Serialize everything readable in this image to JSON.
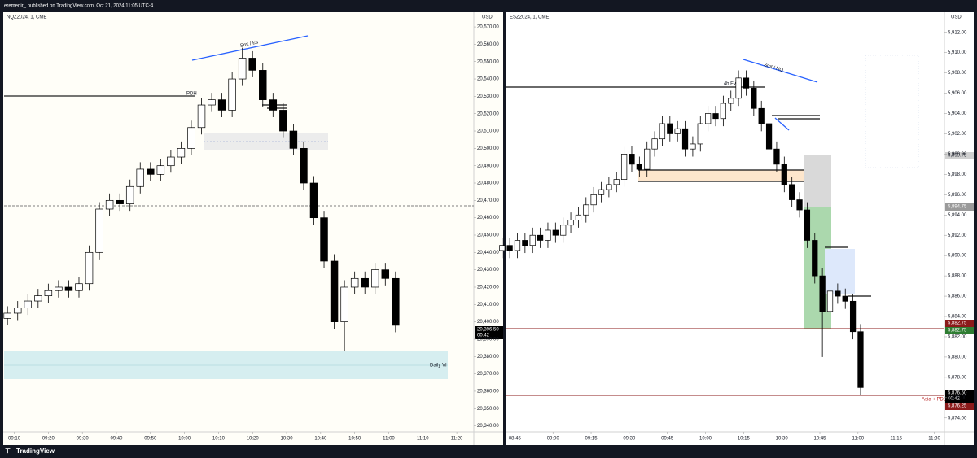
{
  "header": "eremenir_ published on TradingView.com, Oct 21, 2024 11:05 UTC-4",
  "footer": "TradingView",
  "chart_data": [
    {
      "type": "candlestick",
      "symbol": "NQZ2024, 1, CME",
      "currency": "USD",
      "up_color": "#ffffff",
      "down_color": "#000000",
      "x": [
        548,
        551,
        554,
        557,
        560,
        563,
        566,
        569,
        572,
        575,
        578,
        581,
        584,
        587,
        590,
        593,
        596,
        599,
        602,
        605,
        608,
        611,
        614,
        617,
        620,
        623,
        626,
        629,
        632,
        635,
        638,
        641,
        644,
        647,
        650,
        653,
        656,
        659,
        662
      ],
      "open": [
        20402,
        20405,
        20408,
        20412,
        20415,
        20418,
        20420,
        20418,
        20422,
        20440,
        20465,
        20470,
        20468,
        20478,
        20488,
        20485,
        20490,
        20495,
        20500,
        20512,
        20525,
        20528,
        20522,
        20540,
        20552,
        20545,
        20528,
        20522,
        20510,
        20500,
        20480,
        20460,
        20435,
        20400,
        20420,
        20425,
        20420,
        20430,
        20425
      ],
      "high": [
        20409,
        20412,
        20416,
        20419,
        20422,
        20424,
        20424,
        20426,
        20444,
        20469,
        20474,
        20474,
        20482,
        20492,
        20492,
        20494,
        20499,
        20504,
        20516,
        20529,
        20532,
        20532,
        20544,
        20558,
        20556,
        20549,
        20532,
        20526,
        20514,
        20504,
        20484,
        20464,
        20439,
        20424,
        20429,
        20429,
        20434,
        20434,
        20429
      ],
      "low": [
        20398,
        20401,
        20404,
        20408,
        20411,
        20414,
        20414,
        20414,
        20418,
        20436,
        20461,
        20464,
        20464,
        20474,
        20481,
        20481,
        20486,
        20491,
        20496,
        20508,
        20521,
        20518,
        20518,
        20536,
        20541,
        20524,
        20518,
        20506,
        20496,
        20476,
        20456,
        20431,
        20396,
        20383,
        20416,
        20416,
        20416,
        20421,
        20394
      ],
      "close": [
        20405,
        20408,
        20412,
        20415,
        20418,
        20420,
        20418,
        20422,
        20440,
        20465,
        20470,
        20468,
        20478,
        20488,
        20485,
        20490,
        20495,
        20500,
        20512,
        20525,
        20528,
        20522,
        20540,
        20552,
        20545,
        20528,
        20522,
        20510,
        20500,
        20480,
        20460,
        20435,
        20400,
        20420,
        20425,
        20420,
        20430,
        20425,
        20398
      ],
      "xlim": [
        547,
        685
      ],
      "xticks": [
        {
          "value": 550,
          "label": "09:10"
        },
        {
          "value": 560,
          "label": "09:20"
        },
        {
          "value": 570,
          "label": "09:30"
        },
        {
          "value": 580,
          "label": "09:40"
        },
        {
          "value": 590,
          "label": "09:50"
        },
        {
          "value": 600,
          "label": "10:00"
        },
        {
          "value": 610,
          "label": "10:10"
        },
        {
          "value": 620,
          "label": "10:20"
        },
        {
          "value": 630,
          "label": "10:30"
        },
        {
          "value": 640,
          "label": "10:40"
        },
        {
          "value": 650,
          "label": "10:50"
        },
        {
          "value": 660,
          "label": "11:00"
        },
        {
          "value": 670,
          "label": "11:10"
        },
        {
          "value": 680,
          "label": "11:20"
        }
      ],
      "ylim": [
        20337,
        20578
      ],
      "yticks": [
        {
          "value": 20340,
          "label": "20,340.00"
        },
        {
          "value": 20350,
          "label": "20,350.00"
        },
        {
          "value": 20360,
          "label": "20,360.00"
        },
        {
          "value": 20370,
          "label": "20,370.00"
        },
        {
          "value": 20380,
          "label": "20,380.00"
        },
        {
          "value": 20390,
          "label": "20,390.00"
        },
        {
          "value": 20400,
          "label": "20,400.00"
        },
        {
          "value": 20410,
          "label": "20,410.00"
        },
        {
          "value": 20420,
          "label": "20,420.00"
        },
        {
          "value": 20430,
          "label": "20,430.00"
        },
        {
          "value": 20440,
          "label": "20,440.00"
        },
        {
          "value": 20450,
          "label": "20,450.00"
        },
        {
          "value": 20460,
          "label": "20,460.00"
        },
        {
          "value": 20470,
          "label": "20,470.00"
        },
        {
          "value": 20480,
          "label": "20,480.00"
        },
        {
          "value": 20490,
          "label": "20,490.00"
        },
        {
          "value": 20500,
          "label": "20,500.00"
        },
        {
          "value": 20510,
          "label": "20,510.00"
        },
        {
          "value": 20520,
          "label": "20,520.00"
        },
        {
          "value": 20530,
          "label": "20,530.00"
        },
        {
          "value": 20540,
          "label": "20,540.00"
        },
        {
          "value": 20550,
          "label": "20,550.00"
        },
        {
          "value": 20560,
          "label": "20,560.00"
        },
        {
          "value": 20570,
          "label": "20,570.00"
        }
      ],
      "annotations": [
        "Smt / Es",
        "PDH",
        "Daily VI"
      ],
      "price_labels": [
        "20,396.50",
        "00:42"
      ]
    },
    {
      "type": "candlestick",
      "symbol": "ESZ2024, 1, CME",
      "currency": "USD",
      "up_color": "#ffffff",
      "down_color": "#000000",
      "x": [
        520,
        523,
        526,
        529,
        532,
        535,
        538,
        541,
        544,
        547,
        550,
        553,
        556,
        559,
        562,
        565,
        568,
        571,
        574,
        577,
        580,
        583,
        586,
        589,
        592,
        595,
        598,
        601,
        604,
        607,
        610,
        613,
        616,
        619,
        622,
        625,
        628,
        631,
        634,
        637,
        640,
        643,
        646,
        649,
        652,
        655,
        658,
        661
      ],
      "open": [
        5890.5,
        5891.0,
        5890.5,
        5891.5,
        5891.0,
        5892.0,
        5891.5,
        5892.5,
        5892.0,
        5893.0,
        5893.5,
        5894.0,
        5895.0,
        5896.0,
        5896.5,
        5897.0,
        5897.5,
        5900.0,
        5899.0,
        5898.5,
        5900.5,
        5901.5,
        5903.0,
        5902.0,
        5902.5,
        5900.5,
        5901.0,
        5903.0,
        5904.0,
        5903.5,
        5905.0,
        5905.5,
        5907.5,
        5906.5,
        5904.5,
        5903.0,
        5900.5,
        5899.0,
        5897.0,
        5895.5,
        5894.5,
        5891.5,
        5888.0,
        5884.5,
        5886.5,
        5886.0,
        5885.5,
        5882.5
      ],
      "high": [
        5891.75,
        5891.75,
        5892.25,
        5892.25,
        5892.75,
        5892.75,
        5893.25,
        5893.25,
        5893.75,
        5894.25,
        5894.75,
        5895.75,
        5896.75,
        5897.25,
        5897.75,
        5898.25,
        5900.75,
        5900.75,
        5899.75,
        5901.25,
        5902.25,
        5903.75,
        5903.75,
        5903.25,
        5903.25,
        5901.75,
        5903.75,
        5904.75,
        5904.75,
        5905.75,
        5906.25,
        5908.25,
        5908.25,
        5907.25,
        5905.25,
        5903.75,
        5901.25,
        5899.75,
        5897.75,
        5896.25,
        5895.25,
        5892.25,
        5888.75,
        5887.25,
        5887.25,
        5886.75,
        5886.25,
        5883.25
      ],
      "low": [
        5889.75,
        5889.75,
        5889.75,
        5890.25,
        5890.25,
        5890.75,
        5890.75,
        5891.25,
        5891.25,
        5892.25,
        5892.75,
        5893.25,
        5894.25,
        5895.25,
        5895.75,
        5896.25,
        5896.75,
        5898.25,
        5897.75,
        5897.75,
        5899.75,
        5900.75,
        5901.25,
        5901.25,
        5899.75,
        5899.75,
        5900.25,
        5902.25,
        5902.75,
        5902.75,
        5904.25,
        5904.75,
        5905.75,
        5903.75,
        5902.25,
        5899.75,
        5898.25,
        5896.25,
        5894.75,
        5893.75,
        5890.75,
        5887.25,
        5880.0,
        5883.75,
        5885.25,
        5884.75,
        5881.75,
        5876.25
      ],
      "close": [
        5891.0,
        5890.5,
        5891.5,
        5891.0,
        5892.0,
        5891.5,
        5892.5,
        5892.0,
        5893.0,
        5893.5,
        5894.0,
        5895.0,
        5896.0,
        5896.5,
        5897.0,
        5897.5,
        5900.0,
        5899.0,
        5898.5,
        5900.5,
        5901.5,
        5903.0,
        5902.0,
        5902.5,
        5900.5,
        5901.0,
        5903.0,
        5904.0,
        5903.5,
        5905.0,
        5905.5,
        5907.5,
        5906.5,
        5904.5,
        5903.0,
        5900.5,
        5899.0,
        5897.0,
        5895.5,
        5894.5,
        5891.5,
        5888.0,
        5884.5,
        5886.5,
        5886.0,
        5885.5,
        5882.5,
        5877.0
      ],
      "xlim": [
        522,
        694
      ],
      "xticks": [
        {
          "value": 525,
          "label": "08:45"
        },
        {
          "value": 540,
          "label": "09:00"
        },
        {
          "value": 555,
          "label": "09:15"
        },
        {
          "value": 570,
          "label": "09:30"
        },
        {
          "value": 585,
          "label": "09:45"
        },
        {
          "value": 600,
          "label": "10:00"
        },
        {
          "value": 615,
          "label": "10:15"
        },
        {
          "value": 630,
          "label": "10:30"
        },
        {
          "value": 645,
          "label": "10:45"
        },
        {
          "value": 660,
          "label": "11:00"
        },
        {
          "value": 675,
          "label": "11:15"
        },
        {
          "value": 690,
          "label": "11:30"
        }
      ],
      "ylim": [
        5872.7,
        5913.9
      ],
      "yticks": [
        {
          "value": 5874,
          "label": "5,874.00"
        },
        {
          "value": 5876,
          "label": "5,876.00"
        },
        {
          "value": 5878,
          "label": "5,878.00"
        },
        {
          "value": 5880,
          "label": "5,880.00"
        },
        {
          "value": 5882,
          "label": "5,882.00"
        },
        {
          "value": 5884,
          "label": "5,884.00"
        },
        {
          "value": 5886,
          "label": "5,886.00"
        },
        {
          "value": 5888,
          "label": "5,888.00"
        },
        {
          "value": 5890,
          "label": "5,890.00"
        },
        {
          "value": 5892,
          "label": "5,892.00"
        },
        {
          "value": 5894,
          "label": "5,894.00"
        },
        {
          "value": 5896,
          "label": "5,896.00"
        },
        {
          "value": 5898,
          "label": "5,898.00"
        },
        {
          "value": 5900,
          "label": "5,900.00"
        },
        {
          "value": 5902,
          "label": "5,902.00"
        },
        {
          "value": 5904,
          "label": "5,904.00"
        },
        {
          "value": 5906,
          "label": "5,906.00"
        },
        {
          "value": 5908,
          "label": "5,908.00"
        },
        {
          "value": 5910,
          "label": "5,910.00"
        },
        {
          "value": 5912,
          "label": "5,912.00"
        }
      ],
      "annotations": [
        "Smt / NQ",
        "4h Fvg",
        "Asia + PDL"
      ],
      "price_labels": [
        "5,899.75",
        "5,894.75",
        "5,882.75",
        "5,882.75",
        "5,876.50",
        "00:42",
        "5,876.25"
      ]
    }
  ]
}
